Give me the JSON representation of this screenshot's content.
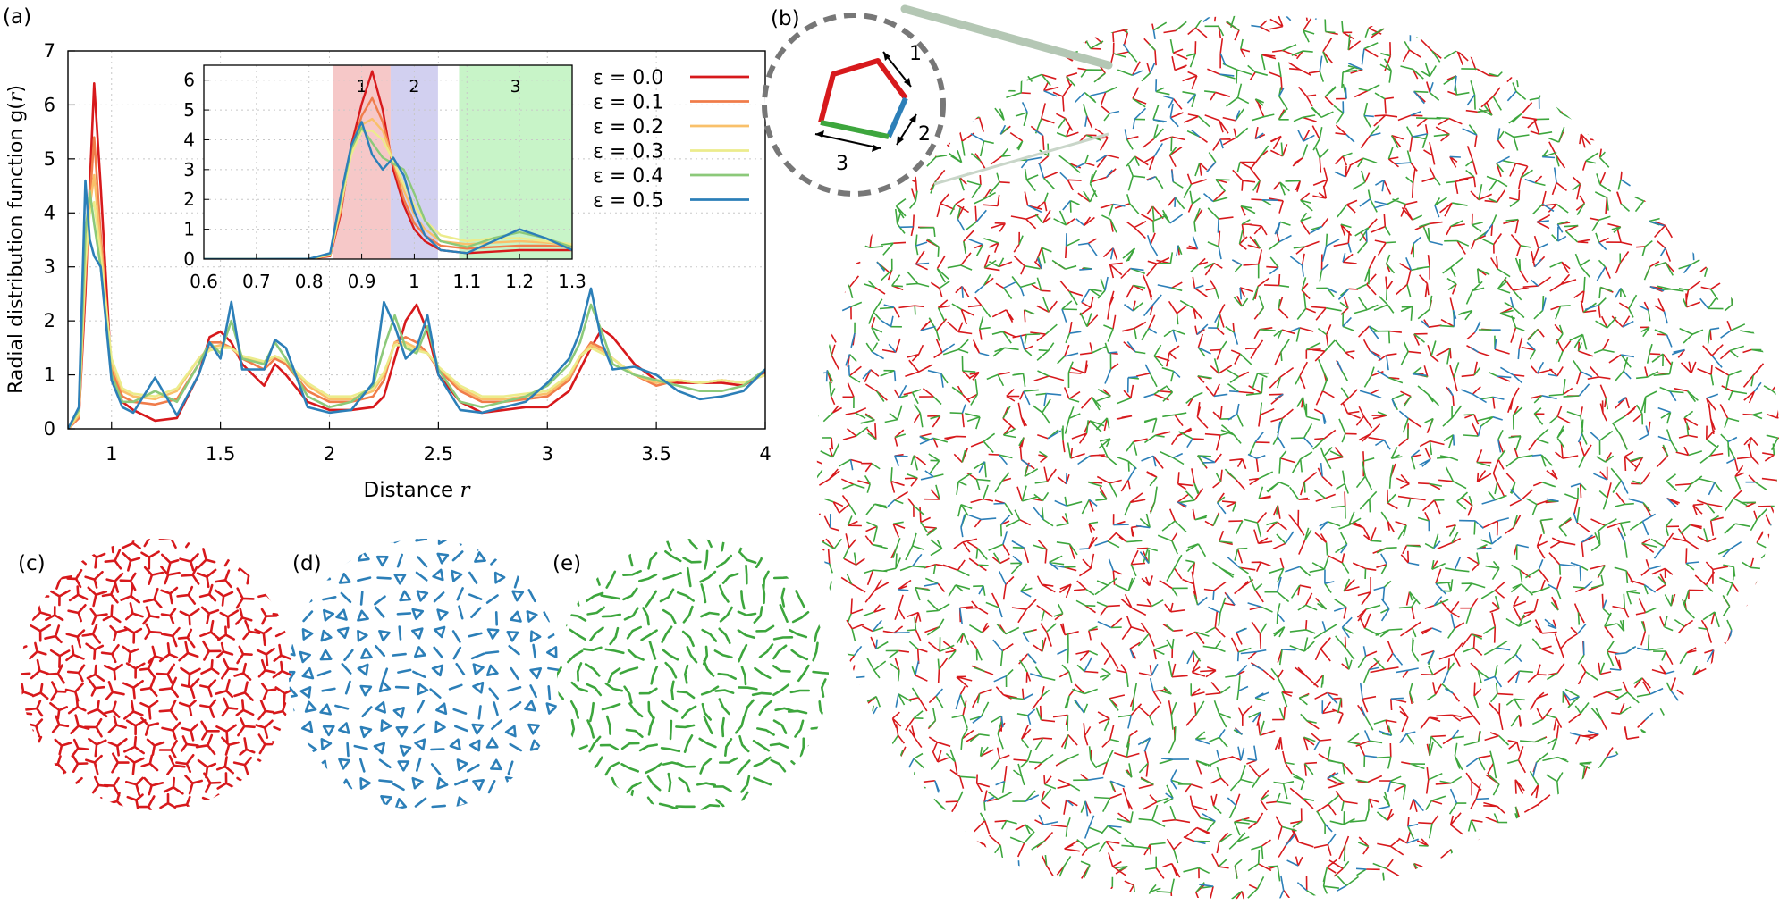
{
  "panels": {
    "a": "(a)",
    "b": "(b)",
    "c": "(c)",
    "d": "(d)",
    "e": "(e)"
  },
  "colors": {
    "red": "#d7191c",
    "orange": "#f07c4a",
    "light_orange": "#f9c06a",
    "yellow": "#ecec8c",
    "light_green": "#8cc97a",
    "blue": "#2c7fb8",
    "green": "#3da63d",
    "band1": "#f6c8c8",
    "band2": "#d2d0f0",
    "band3": "#c8f4c8",
    "dash_circle": "#777777",
    "connector": "#b4c7b4"
  },
  "pentagon_labels": [
    "1",
    "2",
    "3"
  ],
  "chart_data": [
    {
      "type": "line",
      "panel": "a",
      "xlabel": "Distance r",
      "ylabel": "Radial distribution function g(r)",
      "xlim": [
        0.8,
        4
      ],
      "ylim": [
        0,
        7
      ],
      "xticks": [
        "1",
        "1.5",
        "2",
        "2.5",
        "3",
        "3.5",
        "4"
      ],
      "yticks": [
        "0",
        "1",
        "2",
        "3",
        "4",
        "5",
        "6",
        "7"
      ],
      "grid": true,
      "legend_position": "top-right",
      "x": [
        0.8,
        0.85,
        0.88,
        0.9,
        0.92,
        0.95,
        1.0,
        1.05,
        1.1,
        1.2,
        1.3,
        1.4,
        1.45,
        1.5,
        1.55,
        1.6,
        1.7,
        1.75,
        1.8,
        1.9,
        2.0,
        2.1,
        2.2,
        2.25,
        2.3,
        2.35,
        2.4,
        2.45,
        2.5,
        2.6,
        2.7,
        2.8,
        2.9,
        3.0,
        3.1,
        3.15,
        3.2,
        3.25,
        3.3,
        3.4,
        3.5,
        3.6,
        3.7,
        3.8,
        3.9,
        4.0
      ],
      "series": [
        {
          "name": "ε = 0.0",
          "color": "#d7191c",
          "values": [
            0,
            0.2,
            2.5,
            4.5,
            6.4,
            4.5,
            1.0,
            0.5,
            0.35,
            0.15,
            0.2,
            1.0,
            1.7,
            1.8,
            1.6,
            1.2,
            0.8,
            1.2,
            1.0,
            0.5,
            0.35,
            0.35,
            0.4,
            0.6,
            1.3,
            2.0,
            2.3,
            1.8,
            1.0,
            0.5,
            0.3,
            0.35,
            0.4,
            0.4,
            0.7,
            1.1,
            1.5,
            1.85,
            1.7,
            1.2,
            0.9,
            0.85,
            0.85,
            0.85,
            0.8,
            1.05
          ]
        },
        {
          "name": "ε = 0.1",
          "color": "#f07c4a",
          "values": [
            0,
            0.2,
            2.8,
            4.2,
            5.4,
            3.6,
            1.1,
            0.6,
            0.5,
            0.45,
            0.55,
            1.2,
            1.6,
            1.6,
            1.5,
            1.3,
            1.1,
            1.3,
            1.2,
            0.7,
            0.5,
            0.5,
            0.6,
            0.9,
            1.6,
            1.7,
            1.6,
            1.4,
            1.1,
            0.7,
            0.5,
            0.5,
            0.55,
            0.6,
            0.9,
            1.3,
            1.6,
            1.5,
            1.3,
            1.0,
            0.8,
            0.9,
            0.85,
            0.9,
            0.85,
            1.0
          ]
        },
        {
          "name": "ε = 0.2",
          "color": "#f9c06a",
          "values": [
            0,
            0.25,
            3.0,
            4.1,
            4.7,
            3.4,
            1.2,
            0.7,
            0.6,
            0.55,
            0.7,
            1.3,
            1.5,
            1.55,
            1.5,
            1.35,
            1.2,
            1.35,
            1.25,
            0.8,
            0.55,
            0.55,
            0.7,
            1.0,
            1.6,
            1.6,
            1.5,
            1.4,
            1.15,
            0.75,
            0.55,
            0.55,
            0.6,
            0.65,
            0.95,
            1.35,
            1.55,
            1.45,
            1.3,
            1.0,
            0.85,
            0.9,
            0.85,
            0.9,
            0.85,
            1.0
          ]
        },
        {
          "name": "ε = 0.3",
          "color": "#ecec8c",
          "values": [
            0,
            0.3,
            3.1,
            4.0,
            4.2,
            3.2,
            1.3,
            0.75,
            0.65,
            0.6,
            0.75,
            1.3,
            1.45,
            1.5,
            1.5,
            1.35,
            1.25,
            1.35,
            1.25,
            0.85,
            0.6,
            0.6,
            0.75,
            1.05,
            1.55,
            1.55,
            1.45,
            1.4,
            1.15,
            0.8,
            0.6,
            0.6,
            0.65,
            0.7,
            1.0,
            1.35,
            1.5,
            1.4,
            1.3,
            1.0,
            0.9,
            0.9,
            0.85,
            0.9,
            0.85,
            1.0
          ]
        },
        {
          "name": "ε = 0.4",
          "color": "#8cc97a",
          "values": [
            0,
            0.35,
            3.6,
            4.4,
            3.8,
            3.0,
            1.0,
            0.5,
            0.5,
            0.7,
            0.5,
            1.2,
            1.6,
            1.4,
            2.0,
            1.3,
            1.2,
            1.6,
            1.3,
            0.6,
            0.4,
            0.5,
            0.8,
            1.5,
            2.1,
            1.5,
            1.4,
            1.9,
            1.1,
            0.5,
            0.4,
            0.5,
            0.6,
            0.8,
            1.2,
            1.6,
            2.3,
            1.8,
            1.2,
            1.0,
            0.9,
            0.8,
            0.7,
            0.7,
            0.8,
            1.1
          ]
        },
        {
          "name": "ε = 0.5",
          "color": "#2c7fb8",
          "values": [
            0,
            0.4,
            4.6,
            3.5,
            3.2,
            3.0,
            0.9,
            0.4,
            0.3,
            0.95,
            0.25,
            1.0,
            1.6,
            1.3,
            2.35,
            1.1,
            1.1,
            1.65,
            1.5,
            0.4,
            0.3,
            0.35,
            0.85,
            2.35,
            1.9,
            1.3,
            1.5,
            2.1,
            1.0,
            0.35,
            0.3,
            0.4,
            0.5,
            0.85,
            1.3,
            1.8,
            2.6,
            1.6,
            1.1,
            1.15,
            1.0,
            0.7,
            0.55,
            0.6,
            0.7,
            1.1
          ]
        }
      ]
    },
    {
      "type": "line",
      "panel": "a-inset",
      "xlim": [
        0.6,
        1.3
      ],
      "ylim": [
        0,
        6.5
      ],
      "xticks": [
        "0.6",
        "0.7",
        "0.8",
        "0.9",
        "1",
        "1.1",
        "1.2",
        "1.3"
      ],
      "yticks": [
        "0",
        "1",
        "2",
        "3",
        "4",
        "5",
        "6"
      ],
      "bands": [
        {
          "label": "1",
          "from": 0.845,
          "to": 0.955,
          "color": "#f6c8c8"
        },
        {
          "label": "2",
          "from": 0.955,
          "to": 1.045,
          "color": "#d2d0f0"
        },
        {
          "label": "3",
          "from": 1.085,
          "to": 1.3,
          "color": "#c8f4c8"
        }
      ],
      "x": [
        0.6,
        0.7,
        0.8,
        0.84,
        0.86,
        0.88,
        0.9,
        0.92,
        0.94,
        0.96,
        0.98,
        1.0,
        1.02,
        1.05,
        1.1,
        1.15,
        1.2,
        1.25,
        1.3
      ],
      "series": [
        {
          "name": "ε = 0.0",
          "color": "#d7191c",
          "values": [
            0,
            0,
            0.01,
            0.1,
            1.5,
            3.8,
            5.2,
            6.3,
            5.0,
            3.0,
            1.8,
            1.0,
            0.6,
            0.3,
            0.2,
            0.25,
            0.3,
            0.3,
            0.3
          ]
        },
        {
          "name": "ε = 0.1",
          "color": "#f07c4a",
          "values": [
            0,
            0,
            0.01,
            0.12,
            1.6,
            3.7,
            4.8,
            5.4,
            4.6,
            3.2,
            2.0,
            1.2,
            0.8,
            0.45,
            0.35,
            0.4,
            0.45,
            0.45,
            0.4
          ]
        },
        {
          "name": "ε = 0.2",
          "color": "#f9c06a",
          "values": [
            0,
            0,
            0.01,
            0.13,
            1.7,
            3.6,
            4.5,
            4.7,
            4.3,
            3.3,
            2.3,
            1.5,
            1.0,
            0.6,
            0.5,
            0.55,
            0.6,
            0.55,
            0.45
          ]
        },
        {
          "name": "ε = 0.3",
          "color": "#ecec8c",
          "values": [
            0,
            0,
            0.01,
            0.15,
            1.8,
            3.5,
            4.3,
            4.3,
            4.0,
            3.3,
            2.5,
            1.8,
            1.3,
            0.8,
            0.6,
            0.7,
            0.7,
            0.6,
            0.5
          ]
        },
        {
          "name": "ε = 0.4",
          "color": "#8cc97a",
          "values": [
            0,
            0,
            0.01,
            0.18,
            2.0,
            3.7,
            4.4,
            3.9,
            3.4,
            3.2,
            3.0,
            2.2,
            1.3,
            0.6,
            0.4,
            0.7,
            0.9,
            0.7,
            0.4
          ]
        },
        {
          "name": "ε = 0.5",
          "color": "#2c7fb8",
          "values": [
            0,
            0,
            0.01,
            0.2,
            2.1,
            3.8,
            4.6,
            3.5,
            3.0,
            3.4,
            2.8,
            1.6,
            0.8,
            0.3,
            0.2,
            0.6,
            1.0,
            0.7,
            0.3
          ]
        }
      ]
    }
  ]
}
